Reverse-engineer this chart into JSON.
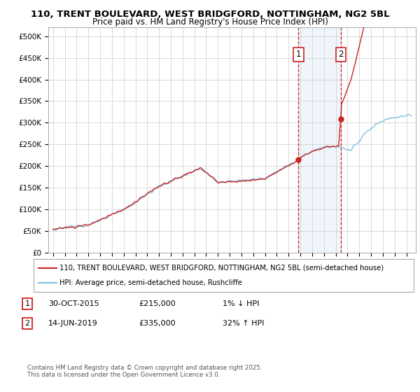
{
  "title_line1": "110, TRENT BOULEVARD, WEST BRIDGFORD, NOTTINGHAM, NG2 5BL",
  "title_line2": "Price paid vs. HM Land Registry's House Price Index (HPI)",
  "ylim": [
    0,
    520000
  ],
  "yticks": [
    0,
    50000,
    100000,
    150000,
    200000,
    250000,
    300000,
    350000,
    400000,
    450000,
    500000
  ],
  "ytick_labels": [
    "£0",
    "£50K",
    "£100K",
    "£150K",
    "£200K",
    "£250K",
    "£300K",
    "£350K",
    "£400K",
    "£450K",
    "£500K"
  ],
  "hpi_color": "#7fbfdf",
  "price_color": "#cc2222",
  "marker1_year": 2015.83,
  "marker2_year": 2019.45,
  "marker1_price": 215000,
  "marker2_price": 335000,
  "vline_color": "#cc2222",
  "shade_color": "#cce0f0",
  "legend_label1": "110, TRENT BOULEVARD, WEST BRIDGFORD, NOTTINGHAM, NG2 5BL (semi-detached house)",
  "legend_label2": "HPI: Average price, semi-detached house, Rushcliffe",
  "ann1_date": "30-OCT-2015",
  "ann1_price": "£215,000",
  "ann1_hpi": "1% ↓ HPI",
  "ann2_date": "14-JUN-2019",
  "ann2_price": "£335,000",
  "ann2_hpi": "32% ↑ HPI",
  "footnote": "Contains HM Land Registry data © Crown copyright and database right 2025.\nThis data is licensed under the Open Government Licence v3.0.",
  "bg_color": "#ffffff",
  "grid_color": "#cccccc"
}
